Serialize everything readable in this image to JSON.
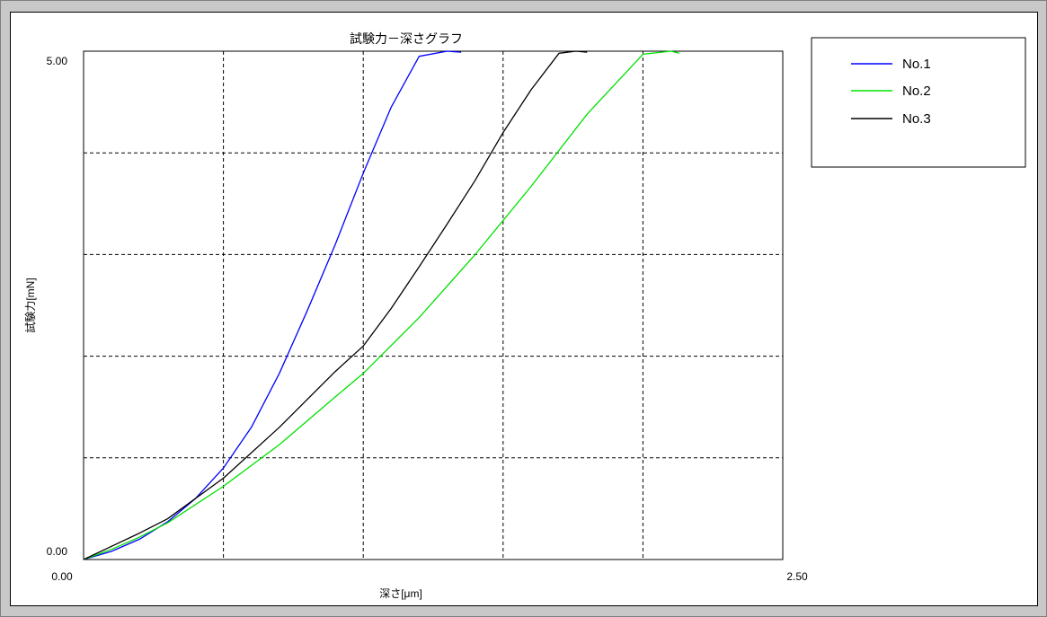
{
  "chart_data": {
    "type": "line",
    "title": "試験力－深さグラフ",
    "xlabel": "深さ[μm]",
    "ylabel": "試験力[mN]",
    "xlim": [
      0,
      2.5
    ],
    "ylim": [
      0,
      5
    ],
    "x_tick_labels": [
      "0.00",
      "2.50"
    ],
    "y_tick_labels": [
      "0.00",
      "5.00"
    ],
    "grid": true,
    "legend_position": "top-right",
    "series": [
      {
        "name": "No.1",
        "color": "#0000ff",
        "points": [
          [
            0,
            0
          ],
          [
            0.1,
            0.08
          ],
          [
            0.2,
            0.2
          ],
          [
            0.3,
            0.37
          ],
          [
            0.4,
            0.6
          ],
          [
            0.5,
            0.9
          ],
          [
            0.6,
            1.3
          ],
          [
            0.7,
            1.83
          ],
          [
            0.8,
            2.45
          ],
          [
            0.9,
            3.1
          ],
          [
            1.0,
            3.8
          ],
          [
            1.1,
            4.45
          ],
          [
            1.2,
            4.95
          ],
          [
            1.3,
            5.0
          ],
          [
            1.35,
            4.99
          ]
        ]
      },
      {
        "name": "No.2",
        "color": "#00e000",
        "points": [
          [
            0,
            0
          ],
          [
            0.1,
            0.1
          ],
          [
            0.2,
            0.22
          ],
          [
            0.3,
            0.36
          ],
          [
            0.5,
            0.72
          ],
          [
            0.7,
            1.13
          ],
          [
            0.9,
            1.6
          ],
          [
            1.0,
            1.83
          ],
          [
            1.2,
            2.38
          ],
          [
            1.4,
            3.0
          ],
          [
            1.6,
            3.67
          ],
          [
            1.8,
            4.38
          ],
          [
            2.0,
            4.97
          ],
          [
            2.1,
            5.0
          ],
          [
            2.13,
            4.98
          ]
        ]
      },
      {
        "name": "No.3",
        "color": "#000000",
        "points": [
          [
            0,
            0
          ],
          [
            0.1,
            0.13
          ],
          [
            0.2,
            0.26
          ],
          [
            0.3,
            0.4
          ],
          [
            0.5,
            0.8
          ],
          [
            0.7,
            1.3
          ],
          [
            0.9,
            1.85
          ],
          [
            1.0,
            2.1
          ],
          [
            1.1,
            2.47
          ],
          [
            1.2,
            2.88
          ],
          [
            1.3,
            3.3
          ],
          [
            1.4,
            3.73
          ],
          [
            1.5,
            4.2
          ],
          [
            1.6,
            4.62
          ],
          [
            1.7,
            4.98
          ],
          [
            1.76,
            5.0
          ],
          [
            1.8,
            4.99
          ]
        ]
      }
    ]
  }
}
